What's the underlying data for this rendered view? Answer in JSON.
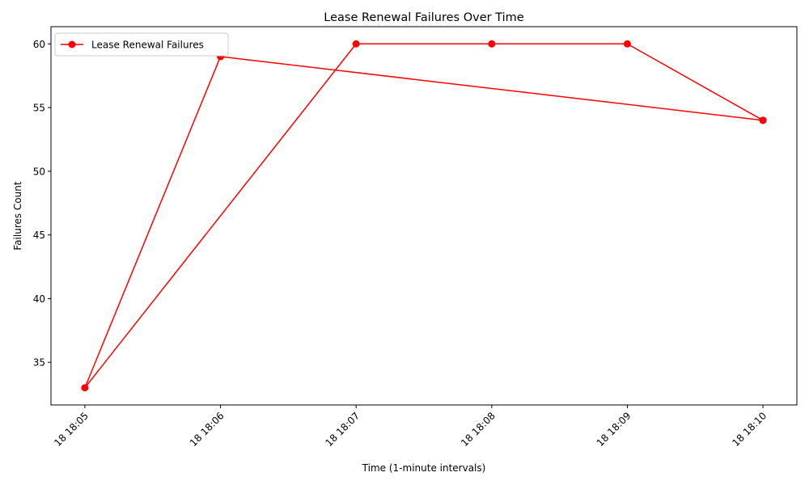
{
  "chart_data": {
    "type": "line",
    "title": "Lease Renewal Failures Over Time",
    "xlabel": "Time (1-minute intervals)",
    "ylabel": "Failures Count",
    "x_ticks": [
      "18 18:05",
      "18 18:06",
      "18 18:07",
      "18 18:08",
      "18 18:09",
      "18 18:10"
    ],
    "y_ticks": [
      35,
      40,
      45,
      50,
      55,
      60
    ],
    "ylim": [
      31.65,
      61.35
    ],
    "xlim": [
      "18 18:04:45",
      "18 18:10:15"
    ],
    "grid": false,
    "legend_position": "top-left",
    "series": [
      {
        "name": "Lease Renewal Failures",
        "color": "#ff0000",
        "marker": "circle",
        "points": [
          {
            "x": "18 18:10",
            "y": 54
          },
          {
            "x": "18 18:06",
            "y": 59
          },
          {
            "x": "18 18:05",
            "y": 33
          },
          {
            "x": "18 18:07",
            "y": 60
          },
          {
            "x": "18 18:08",
            "y": 60
          },
          {
            "x": "18 18:09",
            "y": 60
          },
          {
            "x": "18 18:10",
            "y": 54
          }
        ]
      }
    ]
  }
}
